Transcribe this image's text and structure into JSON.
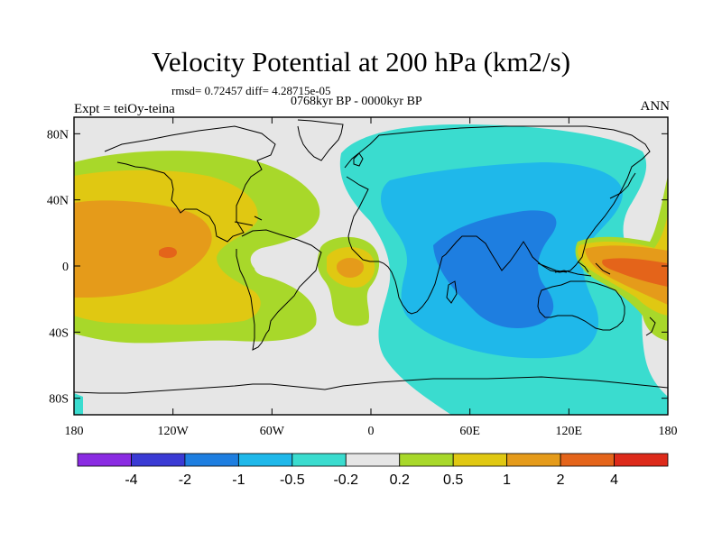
{
  "title": "Velocity Potential at 200 hPa (km2/s)",
  "rmsd_line": "rmsd= 0.72457 diff= 4.28715e-05",
  "period_line": "0768kyr BP - 0000kyr BP",
  "expt_label": "Expt = teiOy-teina",
  "season_label": "ANN",
  "map": {
    "projection": "cylindrical equidistant",
    "lon_range": [
      -180,
      180
    ],
    "lat_range": [
      -90,
      90
    ],
    "background_color": "#e6e6e6",
    "coastline_color": "#000000"
  },
  "axes": {
    "x_ticks": [
      {
        "lon": -180,
        "label": "180"
      },
      {
        "lon": -120,
        "label": "120W"
      },
      {
        "lon": -60,
        "label": "60W"
      },
      {
        "lon": 0,
        "label": "0"
      },
      {
        "lon": 60,
        "label": "60E"
      },
      {
        "lon": 120,
        "label": "120E"
      },
      {
        "lon": 180,
        "label": "180"
      }
    ],
    "y_ticks": [
      {
        "lat": 80,
        "label": "80N"
      },
      {
        "lat": 40,
        "label": "40N"
      },
      {
        "lat": 0,
        "label": "0"
      },
      {
        "lat": -40,
        "label": "40S"
      },
      {
        "lat": -80,
        "label": "80S"
      }
    ]
  },
  "colorbar": {
    "colors": [
      "#8a2be2",
      "#3a3ad4",
      "#1e7ee0",
      "#1fb8ea",
      "#3adccf",
      "#e6e6e6",
      "#a8d82a",
      "#e0c812",
      "#e59b1a",
      "#e4641a",
      "#dd2a1a"
    ],
    "labels": [
      "-4",
      "-2",
      "-1",
      "-0.5",
      "-0.2",
      "0.2",
      "0.5",
      "1",
      "2",
      "4"
    ]
  }
}
